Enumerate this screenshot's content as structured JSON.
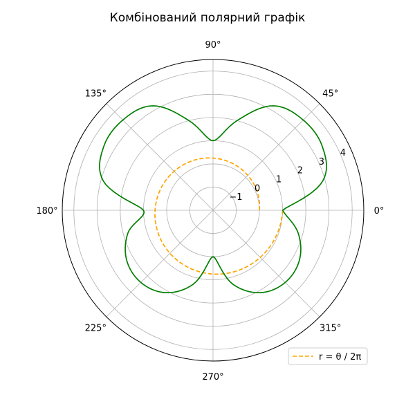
{
  "chart_data": {
    "type": "polar",
    "title": "Комбінований полярний графік",
    "r_range": [
      -2,
      4.5
    ],
    "r_ticks": [
      -1,
      0,
      1,
      2,
      3,
      4
    ],
    "r_tick_labels": [
      "−1",
      "0",
      "1",
      "2",
      "3",
      "4"
    ],
    "angle_ticks_deg": [
      0,
      45,
      90,
      135,
      180,
      225,
      270,
      315
    ],
    "angle_tick_labels": [
      "0°",
      "45°",
      "90°",
      "135°",
      "180°",
      "225°",
      "270°",
      "315°"
    ],
    "grid": true,
    "legend": {
      "placement": "bottom-right",
      "entries": [
        "r = θ / 2π"
      ]
    },
    "series": [
      {
        "name": "r = θ / 2π",
        "style": "dashed",
        "color": "#ffa500",
        "formula": "r = θ / 2π",
        "theta_range_deg": [
          0,
          360
        ],
        "r_range": [
          0,
          1
        ]
      },
      {
        "style": "solid",
        "color": "#008000",
        "formula": "r = 1 + 2·sin(θ)·cos(θ)·(…) — two-lobed petals, peak r ≈ 3.5 at 45°/135°, r ≈ 2.4 at 225°/315°",
        "points": [
          [
            0,
            1.0
          ],
          [
            15,
            2.9
          ],
          [
            30,
            3.45
          ],
          [
            45,
            3.5
          ],
          [
            60,
            3.2
          ],
          [
            75,
            2.0
          ],
          [
            90,
            1.0
          ],
          [
            105,
            2.0
          ],
          [
            120,
            3.2
          ],
          [
            135,
            3.5
          ],
          [
            150,
            3.45
          ],
          [
            165,
            2.9
          ],
          [
            180,
            1.0
          ],
          [
            195,
            1.8
          ],
          [
            210,
            2.3
          ],
          [
            225,
            2.4
          ],
          [
            240,
            2.1
          ],
          [
            255,
            1.3
          ],
          [
            270,
            0.0
          ],
          [
            285,
            1.3
          ],
          [
            300,
            2.1
          ],
          [
            315,
            2.4
          ],
          [
            330,
            2.3
          ],
          [
            345,
            1.8
          ],
          [
            360,
            1.0
          ]
        ]
      }
    ]
  }
}
